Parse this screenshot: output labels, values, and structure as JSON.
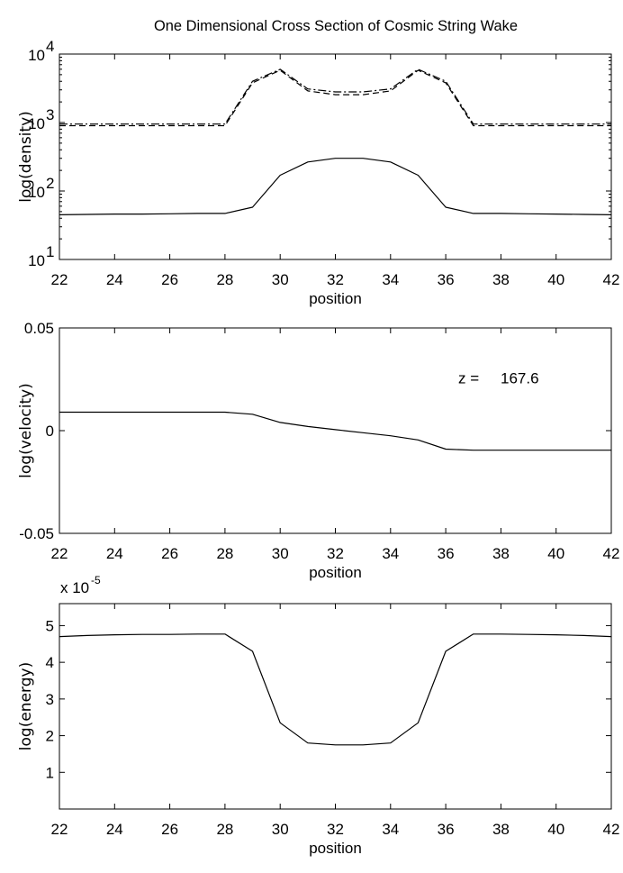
{
  "figure": {
    "title": "One Dimensional Cross Section of Cosmic String Wake"
  },
  "chart_data": [
    {
      "type": "line",
      "id": "density",
      "xlabel": "position",
      "ylabel": "log(density)",
      "xlim": [
        22,
        42
      ],
      "ylim": [
        10,
        10000
      ],
      "yscale": "log",
      "grid": false,
      "x_ticks": [
        22,
        24,
        26,
        28,
        30,
        32,
        34,
        36,
        38,
        40,
        42
      ],
      "y_ticks": [
        {
          "value": 10,
          "base": "10",
          "exp": "1"
        },
        {
          "value": 100,
          "base": "10",
          "exp": "2"
        },
        {
          "value": 1000,
          "base": "10",
          "exp": "3"
        },
        {
          "value": 10000,
          "base": "10",
          "exp": "4"
        }
      ],
      "series": [
        {
          "style": "solid",
          "x": [
            22,
            23,
            24,
            25,
            26,
            27,
            28,
            29,
            30,
            31,
            32,
            33,
            34,
            35,
            36,
            37,
            38,
            39,
            40,
            41,
            42
          ],
          "y": [
            45,
            45.5,
            46,
            46,
            46.5,
            47,
            47,
            58,
            170,
            265,
            300,
            300,
            265,
            170,
            58,
            47,
            47,
            46.5,
            46,
            45.5,
            45
          ]
        },
        {
          "style": "dashed",
          "x": [
            22,
            23,
            24,
            25,
            26,
            27,
            28,
            29,
            30,
            31,
            32,
            33,
            34,
            35,
            36,
            37,
            38,
            39,
            40,
            41,
            42
          ],
          "y": [
            900,
            900,
            900,
            900,
            900,
            900,
            900,
            3800,
            5800,
            2900,
            2550,
            2550,
            2900,
            5800,
            3800,
            900,
            900,
            900,
            900,
            900,
            900
          ]
        },
        {
          "style": "dashdot",
          "x": [
            22,
            23,
            24,
            25,
            26,
            27,
            28,
            29,
            30,
            31,
            32,
            33,
            34,
            35,
            36,
            37,
            38,
            39,
            40,
            41,
            42
          ],
          "y": [
            950,
            950,
            950,
            950,
            950,
            950,
            950,
            4000,
            6000,
            3100,
            2800,
            2800,
            3100,
            6000,
            4000,
            950,
            950,
            950,
            950,
            950,
            950
          ]
        }
      ]
    },
    {
      "type": "line",
      "id": "velocity",
      "xlabel": "position",
      "ylabel": "log(velocity)",
      "xlim": [
        22,
        42
      ],
      "ylim": [
        -0.05,
        0.05
      ],
      "grid": false,
      "x_ticks": [
        22,
        24,
        26,
        28,
        30,
        32,
        34,
        36,
        38,
        40,
        42
      ],
      "y_ticks": [
        {
          "value": -0.05,
          "label": "-0.05"
        },
        {
          "value": 0,
          "label": "0"
        },
        {
          "value": 0.05,
          "label": "0.05"
        }
      ],
      "annotation": {
        "label": "z =",
        "value": "167.6"
      },
      "series": [
        {
          "style": "solid",
          "x": [
            22,
            23,
            24,
            25,
            26,
            27,
            28,
            29,
            30,
            31,
            32,
            33,
            34,
            35,
            36,
            37,
            38,
            39,
            40,
            41,
            42
          ],
          "y": [
            0.009,
            0.009,
            0.009,
            0.009,
            0.009,
            0.009,
            0.009,
            0.008,
            0.004,
            0.002,
            0.0005,
            -0.001,
            -0.0025,
            -0.0045,
            -0.009,
            -0.0095,
            -0.0095,
            -0.0095,
            -0.0095,
            -0.0095,
            -0.0095
          ]
        }
      ]
    },
    {
      "type": "line",
      "id": "energy",
      "xlabel": "position",
      "ylabel": "log(energy)",
      "xlim": [
        22,
        42
      ],
      "ylim": [
        0,
        5.6
      ],
      "grid": false,
      "scale_label": {
        "prefix": "x 10",
        "exp": "-5"
      },
      "x_ticks": [
        22,
        24,
        26,
        28,
        30,
        32,
        34,
        36,
        38,
        40,
        42
      ],
      "y_ticks": [
        {
          "value": 1,
          "label": "1"
        },
        {
          "value": 2,
          "label": "2"
        },
        {
          "value": 3,
          "label": "3"
        },
        {
          "value": 4,
          "label": "4"
        },
        {
          "value": 5,
          "label": "5"
        }
      ],
      "series": [
        {
          "style": "solid",
          "x": [
            22,
            23,
            24,
            25,
            26,
            27,
            28,
            29,
            30,
            31,
            32,
            33,
            34,
            35,
            36,
            37,
            38,
            39,
            40,
            41,
            42
          ],
          "y": [
            4.7,
            4.73,
            4.75,
            4.76,
            4.76,
            4.77,
            4.77,
            4.3,
            2.35,
            1.8,
            1.75,
            1.75,
            1.8,
            2.35,
            4.3,
            4.77,
            4.77,
            4.76,
            4.75,
            4.73,
            4.7
          ]
        }
      ]
    }
  ]
}
